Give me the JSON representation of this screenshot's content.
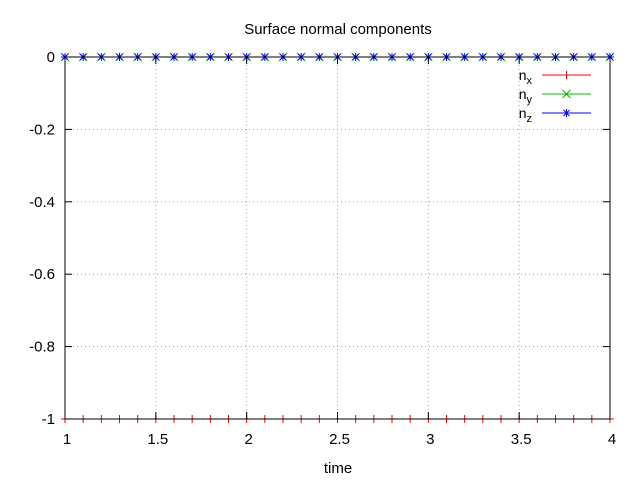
{
  "chart_data": {
    "type": "line",
    "title": "Surface normal components",
    "xlabel": "time",
    "ylabel": "",
    "xlim": [
      1,
      4
    ],
    "ylim": [
      -1,
      0
    ],
    "xticks": [
      "1",
      "1.5",
      "2",
      "2.5",
      "3",
      "3.5",
      "4"
    ],
    "yticks": [
      "0",
      "-0.2",
      "-0.4",
      "-0.6",
      "-0.8",
      "-1"
    ],
    "grid": true,
    "legend": "top-right",
    "x": [
      1.0,
      1.1,
      1.2,
      1.3,
      1.4,
      1.5,
      1.6,
      1.7,
      1.8,
      1.9,
      2.0,
      2.1,
      2.2,
      2.3,
      2.4,
      2.5,
      2.6,
      2.7,
      2.8,
      2.9,
      3.0,
      3.1,
      3.2,
      3.3,
      3.4,
      3.5,
      3.6,
      3.7,
      3.8,
      3.9,
      4.0
    ],
    "series": [
      {
        "name": "n",
        "subscript": "x",
        "color": "#ff0000",
        "marker": "plus",
        "values": [
          -1,
          -1,
          -1,
          -1,
          -1,
          -1,
          -1,
          -1,
          -1,
          -1,
          -1,
          -1,
          -1,
          -1,
          -1,
          -1,
          -1,
          -1,
          -1,
          -1,
          -1,
          -1,
          -1,
          -1,
          -1,
          -1,
          -1,
          -1,
          -1,
          -1,
          -1
        ]
      },
      {
        "name": "n",
        "subscript": "y",
        "color": "#00c000",
        "marker": "cross",
        "values": [
          0,
          0,
          0,
          0,
          0,
          0,
          0,
          0,
          0,
          0,
          0,
          0,
          0,
          0,
          0,
          0,
          0,
          0,
          0,
          0,
          0,
          0,
          0,
          0,
          0,
          0,
          0,
          0,
          0,
          0,
          0
        ]
      },
      {
        "name": "n",
        "subscript": "z",
        "color": "#0000ff",
        "marker": "star",
        "values": [
          0,
          0,
          0,
          0,
          0,
          0,
          0,
          0,
          0,
          0,
          0,
          0,
          0,
          0,
          0,
          0,
          0,
          0,
          0,
          0,
          0,
          0,
          0,
          0,
          0,
          0,
          0,
          0,
          0,
          0,
          0
        ]
      }
    ]
  }
}
